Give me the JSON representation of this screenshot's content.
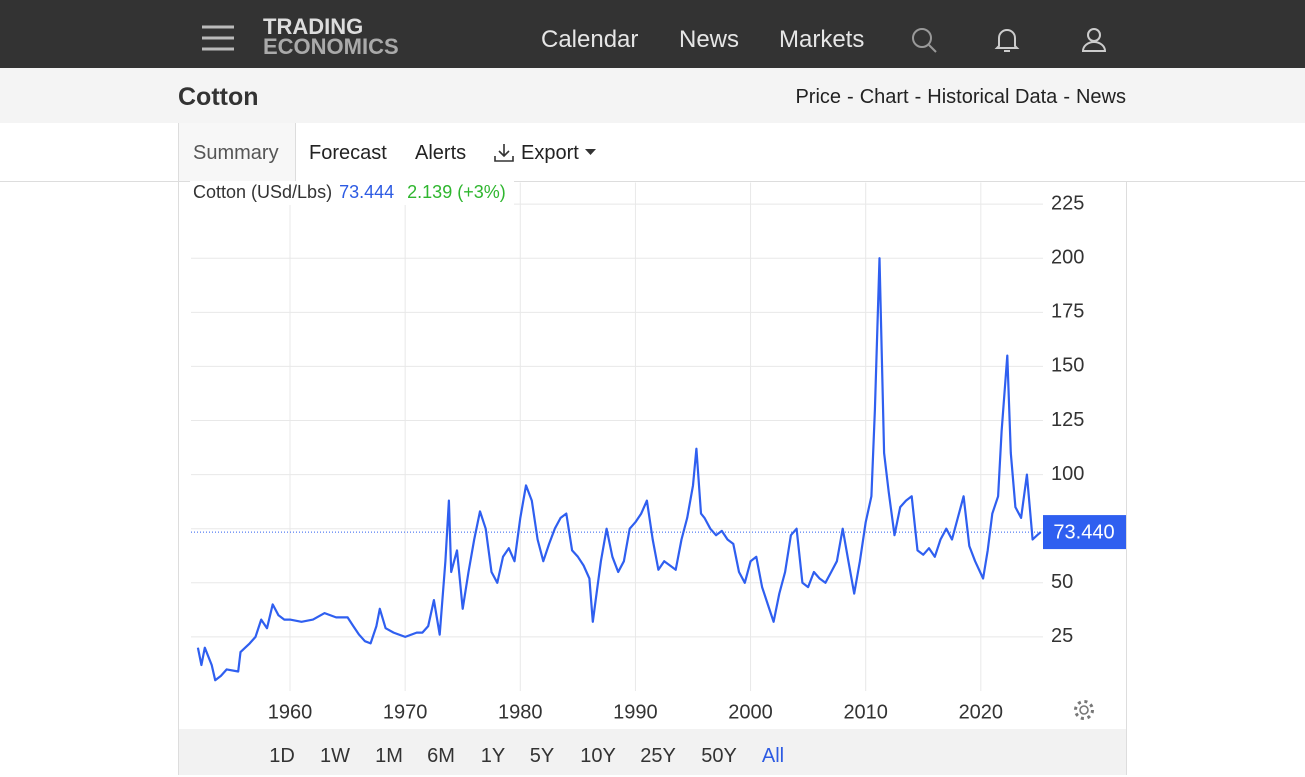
{
  "header": {
    "logo_top": "TRADING",
    "logo_bottom": "ECONOMICS",
    "nav": [
      "Calendar",
      "News",
      "Markets"
    ]
  },
  "page": {
    "title": "Cotton",
    "links": [
      "Price",
      "Chart",
      "Historical Data",
      "News"
    ],
    "separator": "-"
  },
  "tabs": [
    "Summary",
    "Forecast",
    "Alerts",
    "Export"
  ],
  "chart_data": {
    "type": "line",
    "title": "Cotton (USd/Lbs)",
    "price": 73.444,
    "change": 2.139,
    "change_pct": {
      "value": 3,
      "label": "(+3%)"
    },
    "x": [
      1952.0,
      1952.3,
      1952.6,
      1953.2,
      1953.5,
      1954,
      1954.5,
      1955.5,
      1955.7,
      1956.5,
      1957,
      1957.5,
      1958,
      1958.5,
      1959,
      1959.5,
      1960,
      1961,
      1962,
      1963,
      1964,
      1965,
      1965.5,
      1966,
      1966.5,
      1967,
      1967.5,
      1967.8,
      1968.3,
      1969,
      1970,
      1971,
      1971.5,
      1972,
      1972.5,
      1973,
      1973.5,
      1973.8,
      1974,
      1974.5,
      1975,
      1975.5,
      1976,
      1976.5,
      1977,
      1977.5,
      1978,
      1978.5,
      1979,
      1979.5,
      1980,
      1980.5,
      1981,
      1981.5,
      1982,
      1982.5,
      1983,
      1983.5,
      1984,
      1984.5,
      1985,
      1985.5,
      1986,
      1986.3,
      1986.7,
      1987,
      1987.5,
      1988,
      1988.5,
      1989,
      1989.5,
      1990,
      1990.5,
      1991,
      1991.5,
      1992,
      1992.5,
      1993,
      1993.5,
      1994,
      1994.5,
      1995,
      1995.3,
      1995.7,
      1996,
      1996.5,
      1997,
      1997.5,
      1998,
      1998.5,
      1999,
      1999.5,
      2000,
      2000.5,
      2001,
      2001.5,
      2002,
      2002.5,
      2003,
      2003.5,
      2004,
      2004.5,
      2005,
      2005.5,
      2006,
      2006.5,
      2007,
      2007.5,
      2008,
      2008.5,
      2009,
      2009.5,
      2010,
      2010.5,
      2010.8,
      2011.2,
      2011.6,
      2012,
      2012.5,
      2013,
      2013.5,
      2014,
      2014.5,
      2015,
      2015.5,
      2016,
      2016.5,
      2017,
      2017.5,
      2018,
      2018.5,
      2019,
      2019.5,
      2020.2,
      2020.6,
      2021,
      2021.5,
      2021.8,
      2022.3,
      2022.6,
      2023,
      2023.5,
      2024,
      2024.5,
      2024.9,
      2025.2
    ],
    "series": [
      {
        "name": "Cotton",
        "color": "#2f5ff0",
        "values": [
          20,
          12,
          20,
          12,
          5,
          7,
          10,
          9,
          18,
          22,
          25,
          33,
          29,
          40,
          35,
          33,
          33,
          32,
          33,
          36,
          34,
          34,
          30,
          26,
          23,
          22,
          30,
          38,
          29,
          27,
          25,
          27,
          27,
          30,
          42,
          26,
          60,
          88,
          55,
          65,
          38,
          55,
          70,
          83,
          75,
          55,
          50,
          62,
          66,
          60,
          80,
          95,
          88,
          70,
          60,
          68,
          75,
          80,
          82,
          65,
          62,
          58,
          52,
          32,
          48,
          60,
          75,
          62,
          55,
          60,
          75,
          78,
          82,
          88,
          70,
          56,
          60,
          58,
          56,
          70,
          80,
          95,
          112,
          82,
          80,
          75,
          72,
          74,
          70,
          68,
          55,
          50,
          60,
          62,
          48,
          40,
          32,
          45,
          55,
          72,
          75,
          50,
          48,
          55,
          52,
          50,
          55,
          60,
          75,
          60,
          45,
          60,
          78,
          90,
          130,
          200,
          110,
          92,
          72,
          85,
          88,
          90,
          65,
          63,
          66,
          62,
          70,
          75,
          70,
          80,
          90,
          67,
          60,
          52,
          65,
          82,
          90,
          120,
          155,
          110,
          85,
          80,
          100,
          70,
          72,
          73.44
        ]
      }
    ],
    "last": {
      "value": 73.44,
      "label": "73.440"
    },
    "xlim": [
      1951.4,
      2025.4
    ],
    "ylim": [
      0,
      235
    ],
    "xticks": [
      1960,
      1970,
      1980,
      1990,
      2000,
      2010,
      2020
    ],
    "yticks": [
      25,
      50,
      75,
      100,
      125,
      150,
      175,
      200,
      225
    ],
    "grid": true
  },
  "ranges": [
    "1D",
    "1W",
    "1M",
    "6M",
    "1Y",
    "5Y",
    "10Y",
    "25Y",
    "50Y",
    "All"
  ],
  "selected_range": "All"
}
